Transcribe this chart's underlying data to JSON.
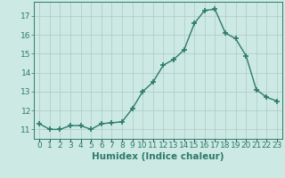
{
  "x": [
    0,
    1,
    2,
    3,
    4,
    5,
    6,
    7,
    8,
    9,
    10,
    11,
    12,
    13,
    14,
    15,
    16,
    17,
    18,
    19,
    20,
    21,
    22,
    23
  ],
  "y": [
    11.3,
    11.0,
    11.0,
    11.2,
    11.2,
    11.0,
    11.3,
    11.35,
    11.4,
    12.1,
    13.0,
    13.5,
    14.4,
    14.7,
    15.2,
    16.6,
    17.3,
    17.35,
    16.1,
    15.8,
    14.9,
    13.1,
    12.7,
    12.5
  ],
  "line_color": "#2d7b6b",
  "marker": "+",
  "marker_size": 4,
  "linewidth": 1.0,
  "xlabel": "Humidex (Indice chaleur)",
  "xlim": [
    -0.5,
    23.5
  ],
  "ylim": [
    10.5,
    17.75
  ],
  "yticks": [
    11,
    12,
    13,
    14,
    15,
    16,
    17
  ],
  "xtick_labels": [
    "0",
    "1",
    "2",
    "3",
    "4",
    "5",
    "6",
    "7",
    "8",
    "9",
    "10",
    "11",
    "12",
    "13",
    "14",
    "15",
    "16",
    "17",
    "18",
    "19",
    "20",
    "21",
    "22",
    "23"
  ],
  "bg_color": "#cce9e4",
  "grid_color": "#b0c8c4",
  "tick_fontsize": 6.5,
  "xlabel_fontsize": 7.5
}
